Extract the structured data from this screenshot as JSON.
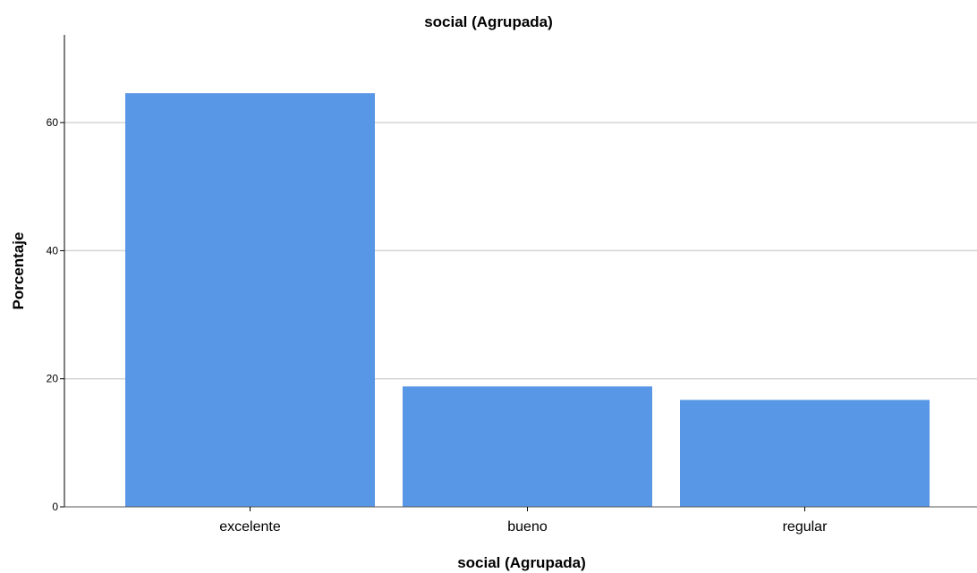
{
  "chart_data": {
    "type": "bar",
    "title": "social (Agrupada)",
    "xlabel": "social (Agrupada)",
    "ylabel": "Porcentaje",
    "categories": [
      "excelente",
      "bueno",
      "regular"
    ],
    "values": [
      64.6,
      18.8,
      16.7
    ],
    "ylim": [
      0,
      73.7
    ],
    "yticks": [
      0,
      20,
      40,
      60
    ],
    "grid": true,
    "bar_color": "#5896e6",
    "grid_color": "#d4d4d4",
    "axis_color": "#000000"
  }
}
